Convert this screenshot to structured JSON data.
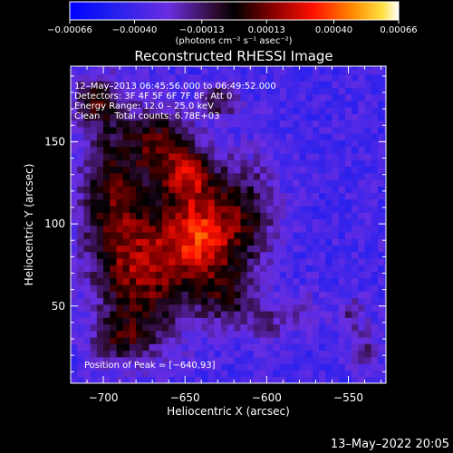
{
  "chart_data": {
    "type": "heatmap",
    "title": "Reconstructed RHESSI Image",
    "xlabel": "Heliocentric X (arcsec)",
    "ylabel": "Heliocentric Y (arcsec)",
    "xlim": [
      -720,
      -527
    ],
    "ylim": [
      3,
      196
    ],
    "x_ticks": [
      -700,
      -650,
      -600,
      -550
    ],
    "x_tick_labels": [
      "−700",
      "−650",
      "−600",
      "−550"
    ],
    "y_ticks": [
      50,
      100,
      150
    ],
    "y_tick_labels": [
      "50",
      "100",
      "150"
    ],
    "colorbar": {
      "min": -0.00066,
      "max": 0.00066,
      "ticks": [
        -0.00066,
        -0.0004,
        -0.00013,
        0.00013,
        0.0004,
        0.00066
      ],
      "tick_labels": [
        "−0.00066",
        "−0.00040",
        "−0.00013",
        "0.00013",
        "0.00040",
        "0.00066"
      ],
      "unit_label": "(photons cm⁻² s⁻¹ asec⁻²)"
    },
    "annotations": [
      "12–May–2013 06:45:56.000 to 06:49:52.000",
      "Detectors: 3F 4F 5F 6F 7F 8F, Att 0",
      "Energy Range: 12.0 – 25.0 keV",
      "Clean     Total counts: 6.78E+03"
    ],
    "peak_label": "Position of Peak = [−640,93]",
    "peak": [
      -640,
      93
    ],
    "sources": [
      {
        "x": -640,
        "y": 93,
        "sx": 16,
        "sy": 20,
        "amp": 0.00062
      },
      {
        "x": -672,
        "y": 70,
        "sx": 18,
        "sy": 30,
        "amp": 0.00046
      },
      {
        "x": -695,
        "y": 115,
        "sx": 14,
        "sy": 40,
        "amp": 0.0004
      },
      {
        "x": -665,
        "y": 150,
        "sx": 14,
        "sy": 14,
        "amp": 0.0004
      },
      {
        "x": -648,
        "y": 130,
        "sx": 12,
        "sy": 12,
        "amp": 0.00044
      },
      {
        "x": -705,
        "y": 175,
        "sx": 9,
        "sy": 10,
        "amp": 0.00034
      },
      {
        "x": -628,
        "y": 175,
        "sx": 8,
        "sy": 8,
        "amp": 0.0003
      },
      {
        "x": -612,
        "y": 108,
        "sx": 14,
        "sy": 24,
        "amp": 0.0003
      },
      {
        "x": -625,
        "y": 55,
        "sx": 12,
        "sy": 14,
        "amp": 0.0003
      },
      {
        "x": -690,
        "y": 30,
        "sx": 12,
        "sy": 10,
        "amp": 0.00028
      },
      {
        "x": -600,
        "y": 40,
        "sx": 9,
        "sy": 9,
        "amp": 0.00022
      },
      {
        "x": -548,
        "y": 45,
        "sx": 7,
        "sy": 8,
        "amp": 0.0002
      },
      {
        "x": -578,
        "y": 48,
        "sx": 8,
        "sy": 8,
        "amp": 0.00015
      },
      {
        "x": -540,
        "y": 22,
        "sx": 6,
        "sy": 8,
        "amp": 0.00024
      }
    ],
    "background": -0.00038
  },
  "timestamp": "13–May–2022 20:05"
}
